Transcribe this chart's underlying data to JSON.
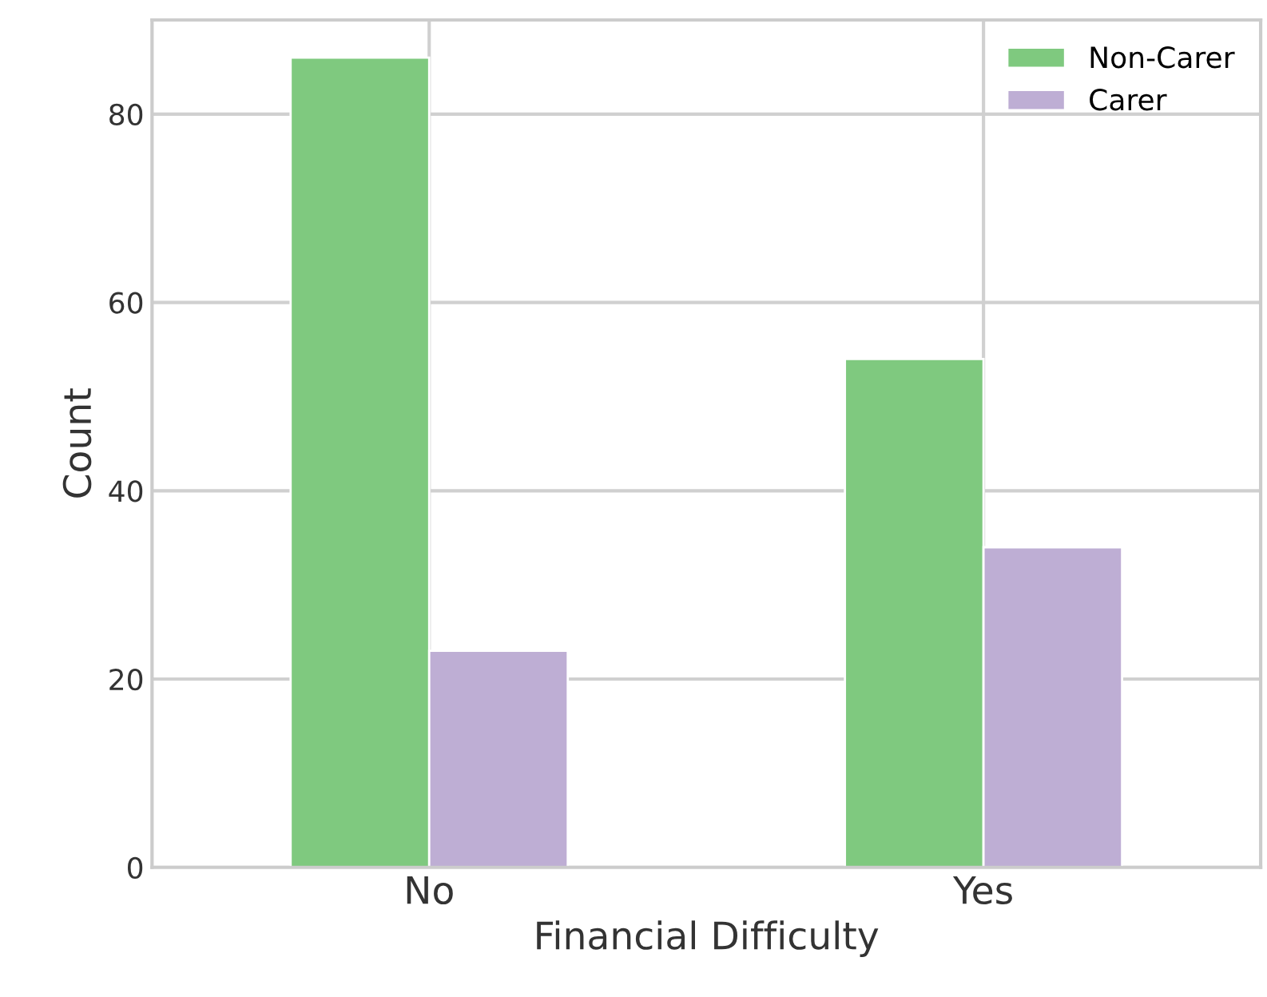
{
  "chart_data": {
    "type": "bar",
    "xlabel": "Financial Difficulty",
    "ylabel": "Count",
    "categories": [
      "No",
      "Yes"
    ],
    "series": [
      {
        "name": "Non-Carer",
        "color": "#7fc97f",
        "values": [
          86,
          54
        ]
      },
      {
        "name": "Carer",
        "color": "#beaed4",
        "values": [
          23,
          34
        ]
      }
    ],
    "ylim": [
      0,
      90
    ],
    "yticks": [
      0,
      20,
      40,
      60,
      80
    ],
    "grid": true,
    "legend": "top right"
  }
}
